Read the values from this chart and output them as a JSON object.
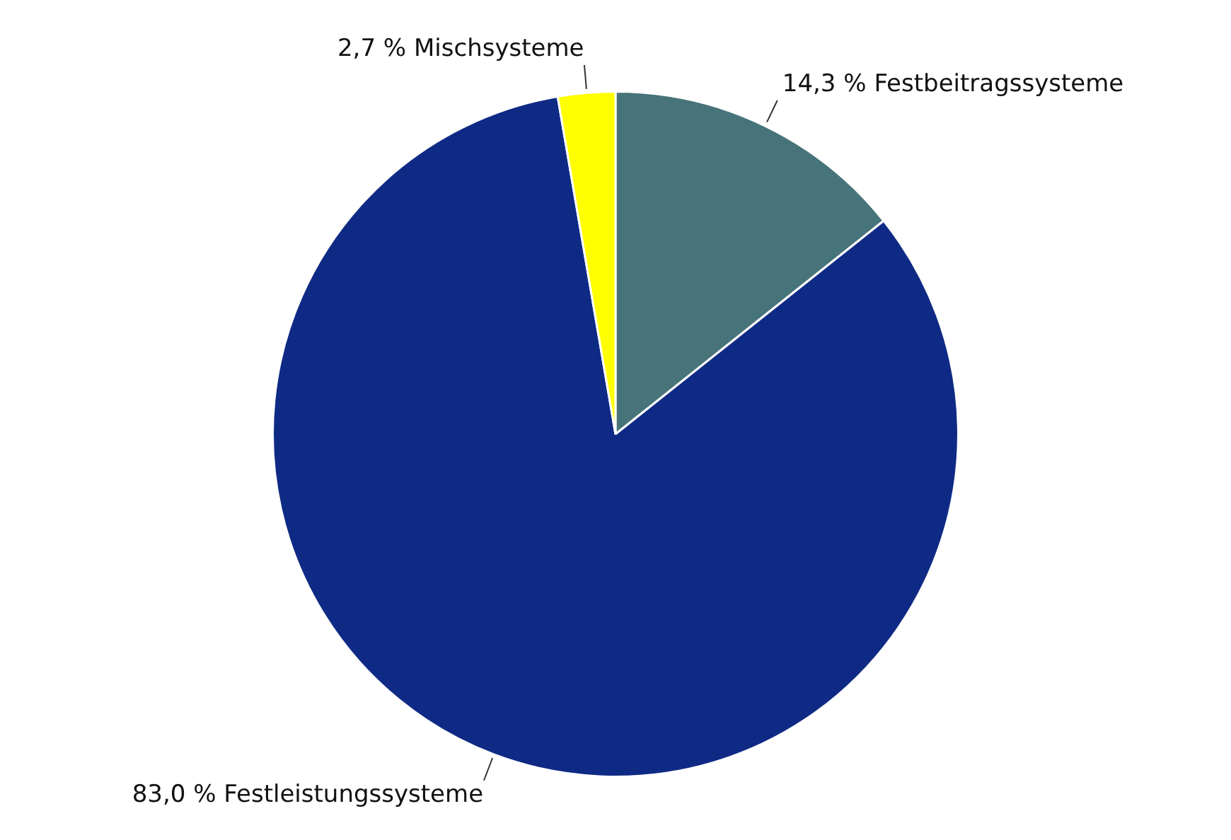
{
  "chart_data": {
    "type": "pie",
    "categories": [
      "Festbeitragssysteme",
      "Festleistungssysteme",
      "Mischsysteme"
    ],
    "values": [
      14.3,
      83.0,
      2.7
    ],
    "value_labels": [
      "14,3 %",
      "83,0 %",
      "2,7 %"
    ],
    "colors": [
      "#47737a",
      "#0f2a85",
      "#ffff00"
    ]
  }
}
